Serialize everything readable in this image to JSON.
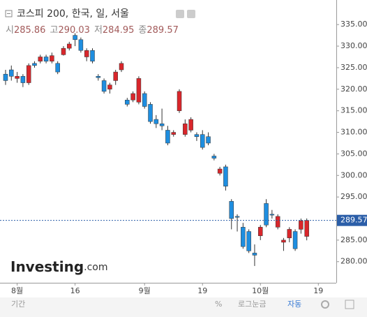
{
  "chart_data": {
    "type": "candlestick",
    "title": "코스피 200, 한국, 일, 서울",
    "header_labels": [
      "시",
      "고",
      "저",
      "종"
    ],
    "open": [
      323.5,
      324.5,
      322.5,
      323,
      321.5,
      326,
      326.5,
      327.5,
      326.5,
      326,
      328,
      329.5,
      332.5,
      331.5,
      327.5,
      329,
      323,
      322,
      320,
      322,
      324.5,
      317.5,
      317.5,
      317,
      319,
      316.5,
      313,
      312,
      310.5,
      309.5,
      315,
      309.5,
      310.5,
      309.5,
      309.5,
      309,
      304.5,
      300.5,
      302,
      294,
      290.5,
      288,
      287,
      282,
      286,
      293.5,
      291,
      288,
      284.5,
      285.5,
      287,
      287.5,
      285.86
    ],
    "high": [
      324.5,
      325.5,
      324,
      323.5,
      326,
      326.5,
      328,
      328,
      328.5,
      326.5,
      330,
      331,
      333,
      332,
      329.5,
      329.5,
      323.5,
      322.5,
      321.5,
      324.5,
      326.5,
      318,
      319.5,
      323,
      319.5,
      317,
      314,
      315.5,
      311.5,
      310.5,
      320,
      313,
      313.5,
      310,
      310.5,
      310,
      305,
      302,
      302.5,
      294.5,
      291,
      289,
      287.5,
      284,
      288.5,
      294.5,
      292,
      291,
      285.5,
      288,
      287.5,
      290,
      290.03
    ],
    "low": [
      321,
      322,
      321.5,
      320.5,
      321,
      325,
      326,
      326,
      326,
      323.5,
      327.8,
      329,
      330,
      328.5,
      326.5,
      326,
      322,
      319,
      319,
      321,
      324,
      316,
      317,
      316.5,
      315.5,
      312,
      311,
      310.5,
      307,
      309,
      314.5,
      309,
      310,
      308,
      306,
      307,
      303.5,
      300,
      296.5,
      287.5,
      287,
      283,
      282,
      279,
      285,
      288,
      290,
      287.5,
      282.5,
      284.5,
      282.5,
      286.5,
      284.95
    ],
    "close": [
      322,
      323,
      323,
      321.5,
      325.5,
      325.5,
      327.5,
      326.5,
      327.8,
      324,
      329.5,
      330.5,
      331.5,
      329,
      329,
      326.5,
      322.7,
      319.5,
      321,
      324,
      326,
      316.5,
      319,
      322.5,
      316,
      312.5,
      312,
      311.5,
      307.5,
      310,
      319.5,
      312,
      313,
      309,
      306.5,
      307.5,
      304,
      301.5,
      297.5,
      290,
      290.3,
      283.5,
      282.5,
      281.5,
      288,
      288.5,
      290.8,
      290.5,
      285,
      287.5,
      283,
      289.5,
      289.57
    ],
    "up_color": "#d9262b",
    "down_color": "#1e8ee0",
    "ylim": [
      275.1,
      340.7
    ],
    "yticks": [
      {
        "value": 280,
        "label": "280.00"
      },
      {
        "value": 285,
        "label": "285.00"
      },
      {
        "value": 290,
        "label": "290.00"
      },
      {
        "value": 295,
        "label": "295.00"
      },
      {
        "value": 300,
        "label": "300.00"
      },
      {
        "value": 305,
        "label": "305.00"
      },
      {
        "value": 310,
        "label": "310.00"
      },
      {
        "value": 315,
        "label": "315.00"
      },
      {
        "value": 320,
        "label": "320.00"
      },
      {
        "value": 325,
        "label": "325.00"
      },
      {
        "value": 330,
        "label": "330.00"
      },
      {
        "value": 335,
        "label": "335.00"
      }
    ],
    "xlim": [
      -0.96,
      57.1
    ],
    "xticks": [
      {
        "value": 2,
        "label": "8월"
      },
      {
        "value": 12,
        "label": "16"
      },
      {
        "value": 24,
        "label": "9월"
      },
      {
        "value": 34,
        "label": "19"
      },
      {
        "value": 44,
        "label": "10월"
      },
      {
        "value": 54,
        "label": "19"
      }
    ],
    "logo": [
      "Investing",
      ".com"
    ],
    "toolbar": [
      "기간",
      "%",
      "로그눈금",
      "자동"
    ]
  }
}
